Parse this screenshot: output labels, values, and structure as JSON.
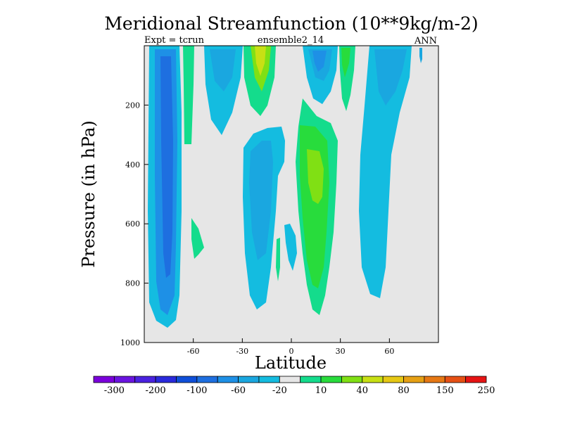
{
  "chart_data": {
    "type": "contour",
    "title": "Meridional Streamfunction (10**9kg/m-2)",
    "subtitle_left": "Expt = tcrun",
    "subtitle_center": "ensemble2_14",
    "subtitle_right": "ANN",
    "xlabel": "Latitude",
    "ylabel": "Pressure (in hPa)",
    "xlim": [
      -90,
      90
    ],
    "ylim": [
      1000,
      0
    ],
    "x_ticks": [
      -60,
      -30,
      0,
      30,
      60
    ],
    "y_ticks": [
      200,
      400,
      600,
      800,
      1000
    ],
    "colorbar": {
      "labels": [
        "-300",
        "-200",
        "-100",
        "-60",
        "-20",
        "10",
        "40",
        "80",
        "150",
        "250"
      ],
      "colors": [
        "#7b00dc",
        "#6a14e0",
        "#4a22e0",
        "#2a2adc",
        "#0f4fd9",
        "#1e6fe0",
        "#1e90e6",
        "#1aa7e0",
        "#14bce0",
        "#e6e6e6",
        "#14dc8c",
        "#28dc3c",
        "#80e014",
        "#c8e014",
        "#e6c814",
        "#e6a014",
        "#e67814",
        "#e65014",
        "#e61414"
      ]
    },
    "background_color": "#e6e6e6",
    "contour_levels": [
      -300,
      -250,
      -200,
      -150,
      -100,
      -80,
      -60,
      -40,
      -20,
      -10,
      10,
      20,
      40,
      60,
      80,
      100,
      150,
      200,
      250
    ]
  }
}
